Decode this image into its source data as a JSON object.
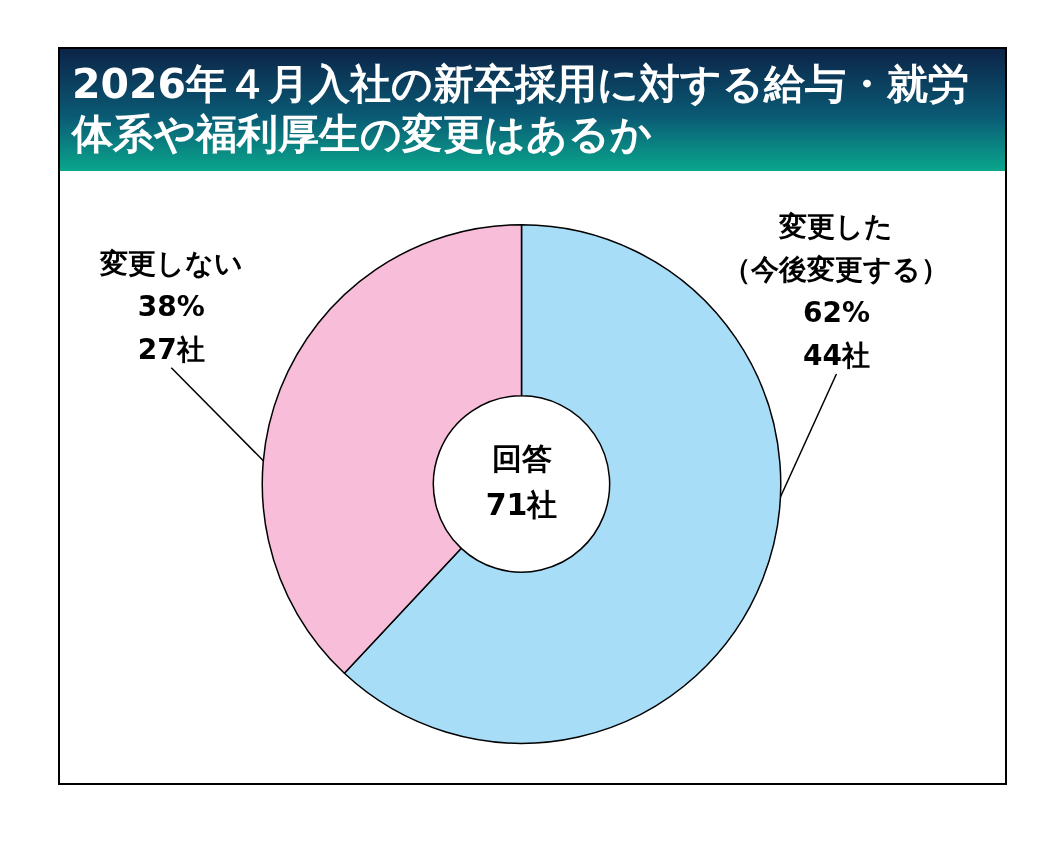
{
  "chart_data": {
    "type": "donut",
    "title": "2026年４月入社の新卒採用に対する給与・就労体系や福利厚生の変更はあるか",
    "categories": [
      "変更した（今後変更する）",
      "変更しない"
    ],
    "values": [
      44,
      27
    ],
    "colors": [
      "#a8ddf8",
      "#f8bdd8"
    ],
    "value_labels": [
      "62%\n44社",
      "38%\n27社"
    ],
    "annotations": [
      "回答\n71社"
    ]
  }
}
